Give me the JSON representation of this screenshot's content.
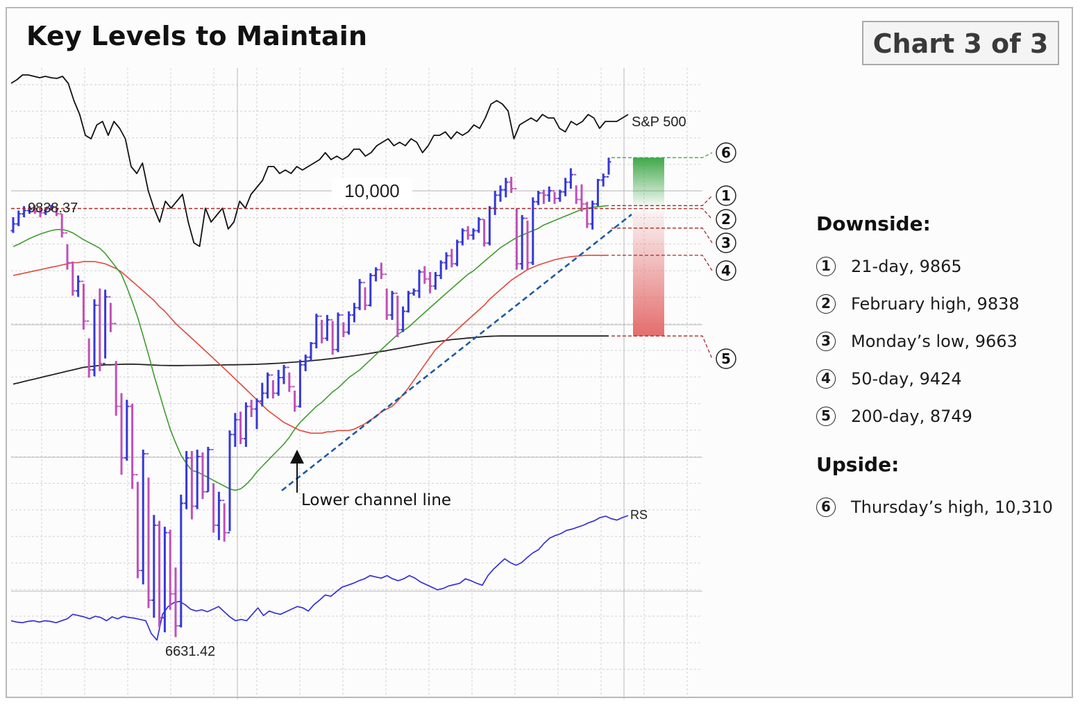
{
  "header": {
    "title": "Key Levels to Maintain",
    "badge": "Chart 3 of 3"
  },
  "legend": {
    "downside_heading": "Downside:",
    "upside_heading": "Upside:",
    "downside": [
      {
        "num": "1",
        "text": "21-day, 9865"
      },
      {
        "num": "2",
        "text": "February high, 9838"
      },
      {
        "num": "3",
        "text": "Monday’s low, 9663"
      },
      {
        "num": "4",
        "text": "50-day, 9424"
      },
      {
        "num": "5",
        "text": "200-day, 8749"
      }
    ],
    "upside": [
      {
        "num": "6",
        "text": "Thursday’s high, 10,310"
      }
    ]
  },
  "chart_data": {
    "type": "ohlc",
    "scale": "log",
    "ylim": [
      6300,
      11200
    ],
    "grid": true,
    "labels": {
      "series_sp500": "S&P 500",
      "series_rs": "RS",
      "level_10000": "10,000",
      "prior_high": "9838.37",
      "low": "6631.42",
      "annotation": "Lower channel line"
    },
    "colors": {
      "up_bar": "#3538d8",
      "down_bar": "#c24fb8",
      "ma21": "#3f9a2e",
      "ma50": "#e0473a",
      "ma200": "#222222",
      "sp500": "#111111",
      "rs": "#3330d6",
      "channel": "#1e5a9e",
      "level_line": "#a52a2a",
      "upside_zone": "#3fa84a",
      "downside_zone": "#e46d6d"
    },
    "key_levels": [
      {
        "num": "1",
        "value": 9865
      },
      {
        "num": "2",
        "value": 9838
      },
      {
        "num": "3",
        "value": 9663
      },
      {
        "num": "4",
        "value": 9424
      },
      {
        "num": "5",
        "value": 8749
      },
      {
        "num": "6",
        "value": 10310
      }
    ],
    "bars": [
      [
        9640,
        9760,
        9620,
        9700
      ],
      [
        9700,
        9820,
        9680,
        9790
      ],
      [
        9790,
        9860,
        9760,
        9820
      ],
      [
        9820,
        9860,
        9790,
        9830
      ],
      [
        9830,
        9870,
        9790,
        9810
      ],
      [
        9810,
        9840,
        9760,
        9800
      ],
      [
        9800,
        9850,
        9780,
        9835
      ],
      [
        9835,
        9870,
        9820,
        9850
      ],
      [
        9850,
        9838,
        9770,
        9790
      ],
      [
        9790,
        9790,
        9580,
        9620
      ],
      [
        9620,
        9520,
        9300,
        9360
      ],
      [
        9360,
        9370,
        9080,
        9120
      ],
      [
        9120,
        9250,
        9070,
        9200
      ],
      [
        9200,
        9180,
        8800,
        8870
      ],
      [
        8870,
        8730,
        8420,
        8480
      ],
      [
        8480,
        9050,
        8430,
        9000
      ],
      [
        9000,
        9140,
        8470,
        8530
      ],
      [
        8530,
        9130,
        8570,
        9070
      ],
      [
        9070,
        9020,
        8780,
        8850
      ],
      [
        8850,
        8550,
        8130,
        8200
      ],
      [
        8200,
        8300,
        7700,
        7820
      ],
      [
        7820,
        8250,
        7800,
        8200
      ],
      [
        8200,
        8220,
        7600,
        7700
      ],
      [
        7700,
        7650,
        7000,
        7050
      ],
      [
        7050,
        7880,
        6960,
        7850
      ],
      [
        7850,
        7680,
        6810,
        6860
      ],
      [
        6860,
        7420,
        6750,
        7350
      ],
      [
        7350,
        7380,
        6690,
        6750
      ],
      [
        6750,
        7340,
        6660,
        7300
      ],
      [
        7300,
        7320,
        6800,
        6900
      ],
      [
        6900,
        7070,
        6631,
        6700
      ],
      [
        6700,
        7560,
        6690,
        7500
      ],
      [
        7500,
        7870,
        7460,
        7820
      ],
      [
        7820,
        7870,
        7390,
        7480
      ],
      [
        7480,
        7880,
        7460,
        7830
      ],
      [
        7830,
        7860,
        7530,
        7580
      ],
      [
        7580,
        7900,
        7580,
        7880
      ],
      [
        7880,
        7640,
        7300,
        7350
      ],
      [
        7350,
        7580,
        7250,
        7520
      ],
      [
        7520,
        7500,
        7240,
        7300
      ],
      [
        7300,
        8020,
        7310,
        7990
      ],
      [
        7990,
        8150,
        7900,
        8100
      ],
      [
        8100,
        8160,
        7920,
        7960
      ],
      [
        7960,
        8230,
        7900,
        8200
      ],
      [
        8200,
        8250,
        8120,
        8180
      ],
      [
        8180,
        8260,
        8030,
        8240
      ],
      [
        8240,
        8380,
        8200,
        8300
      ],
      [
        8300,
        8460,
        8260,
        8440
      ],
      [
        8440,
        8400,
        8260,
        8300
      ],
      [
        8300,
        8480,
        8280,
        8420
      ],
      [
        8420,
        8520,
        8370,
        8500
      ],
      [
        8500,
        8460,
        8310,
        8350
      ],
      [
        8350,
        8320,
        8160,
        8200
      ],
      [
        8200,
        8560,
        8190,
        8520
      ],
      [
        8520,
        8600,
        8470,
        8580
      ],
      [
        8580,
        8700,
        8550,
        8690
      ],
      [
        8690,
        8930,
        8650,
        8910
      ],
      [
        8910,
        8880,
        8690,
        8730
      ],
      [
        8730,
        8920,
        8710,
        8880
      ],
      [
        8880,
        8870,
        8600,
        8640
      ],
      [
        8640,
        8940,
        8620,
        8920
      ],
      [
        8920,
        8860,
        8740,
        8780
      ],
      [
        8780,
        8950,
        8760,
        8920
      ],
      [
        8920,
        9020,
        8860,
        8980
      ],
      [
        8980,
        9220,
        8960,
        9190
      ],
      [
        9190,
        9150,
        8960,
        9000
      ],
      [
        9000,
        9270,
        8990,
        9250
      ],
      [
        9250,
        9320,
        9200,
        9300
      ],
      [
        9300,
        9360,
        9220,
        9260
      ],
      [
        9260,
        9140,
        8880,
        8920
      ],
      [
        8920,
        9120,
        8880,
        9100
      ],
      [
        9100,
        9080,
        8740,
        8800
      ],
      [
        8800,
        8990,
        8780,
        8950
      ],
      [
        8950,
        9120,
        8940,
        9100
      ],
      [
        9100,
        9140,
        9080,
        9120
      ],
      [
        9120,
        9300,
        9060,
        9280
      ],
      [
        9280,
        9330,
        9180,
        9220
      ],
      [
        9220,
        9280,
        9100,
        9160
      ],
      [
        9160,
        9280,
        9130,
        9250
      ],
      [
        9250,
        9380,
        9220,
        9360
      ],
      [
        9360,
        9450,
        9300,
        9420
      ],
      [
        9420,
        9480,
        9320,
        9350
      ],
      [
        9350,
        9560,
        9330,
        9540
      ],
      [
        9540,
        9660,
        9510,
        9640
      ],
      [
        9640,
        9680,
        9560,
        9600
      ],
      [
        9600,
        9660,
        9560,
        9640
      ],
      [
        9640,
        9760,
        9620,
        9740
      ],
      [
        9740,
        9740,
        9500,
        9530
      ],
      [
        9530,
        9860,
        9510,
        9840
      ],
      [
        9840,
        10000,
        9780,
        9960
      ],
      [
        9960,
        10050,
        9900,
        10010
      ],
      [
        10010,
        10120,
        9940,
        10080
      ],
      [
        10080,
        10130,
        9980,
        10020
      ],
      [
        10020,
        9840,
        9300,
        9350
      ],
      [
        9350,
        9780,
        9300,
        9750
      ],
      [
        9750,
        9730,
        9300,
        9360
      ],
      [
        9360,
        9940,
        9340,
        9900
      ],
      [
        9900,
        10000,
        9870,
        9980
      ],
      [
        9980,
        10010,
        9880,
        9960
      ],
      [
        9960,
        10040,
        9900,
        10000
      ],
      [
        10000,
        9990,
        9880,
        9930
      ],
      [
        9930,
        10010,
        9900,
        9990
      ],
      [
        9990,
        10120,
        9950,
        10080
      ],
      [
        10080,
        10210,
        10020,
        10150
      ],
      [
        10150,
        10050,
        9880,
        9920
      ],
      [
        9920,
        10060,
        9810,
        9880
      ],
      [
        9880,
        9900,
        9663,
        9700
      ],
      [
        9700,
        9910,
        9650,
        9880
      ],
      [
        9880,
        10110,
        9860,
        10100
      ],
      [
        10100,
        10160,
        10040,
        10130
      ],
      [
        10130,
        10310,
        10150,
        10270
      ]
    ],
    "ma21": [
      9500,
      9520,
      9545,
      9570,
      9590,
      9610,
      9625,
      9640,
      9650,
      9650,
      9640,
      9620,
      9590,
      9560,
      9535,
      9510,
      9485,
      9440,
      9380,
      9320,
      9260,
      9150,
      9030,
      8900,
      8750,
      8600,
      8440,
      8300,
      8160,
      8030,
      7930,
      7840,
      7780,
      7730,
      7720,
      7700,
      7680,
      7660,
      7640,
      7620,
      7600,
      7590,
      7600,
      7630,
      7670,
      7720,
      7760,
      7800,
      7840,
      7880,
      7920,
      7970,
      8030,
      8080,
      8120,
      8160,
      8200,
      8230,
      8270,
      8310,
      8340,
      8380,
      8420,
      8450,
      8480,
      8520,
      8560,
      8600,
      8640,
      8680,
      8720,
      8760,
      8790,
      8820,
      8860,
      8900,
      8940,
      8980,
      9020,
      9060,
      9100,
      9140,
      9180,
      9220,
      9260,
      9290,
      9330,
      9370,
      9410,
      9450,
      9490,
      9520,
      9550,
      9580,
      9600,
      9620,
      9640,
      9660,
      9690,
      9710,
      9730,
      9750,
      9770,
      9790,
      9810,
      9830,
      9840,
      9850,
      9855,
      9860,
      9865
    ],
    "ma50": [
      9250,
      9260,
      9270,
      9280,
      9290,
      9300,
      9310,
      9320,
      9330,
      9340,
      9350,
      9360,
      9360,
      9370,
      9370,
      9370,
      9360,
      9350,
      9330,
      9310,
      9280,
      9240,
      9200,
      9160,
      9120,
      9080,
      9040,
      8990,
      8950,
      8900,
      8850,
      8810,
      8770,
      8730,
      8690,
      8650,
      8610,
      8570,
      8530,
      8490,
      8450,
      8410,
      8370,
      8330,
      8290,
      8250,
      8210,
      8170,
      8140,
      8110,
      8080,
      8060,
      8040,
      8020,
      8010,
      8000,
      8000,
      8000,
      8010,
      8010,
      8020,
      8020,
      8020,
      8030,
      8050,
      8070,
      8100,
      8120,
      8160,
      8180,
      8200,
      8240,
      8290,
      8340,
      8400,
      8460,
      8520,
      8580,
      8640,
      8680,
      8720,
      8760,
      8800,
      8840,
      8880,
      8920,
      8960,
      9000,
      9050,
      9090,
      9130,
      9170,
      9210,
      9240,
      9270,
      9300,
      9320,
      9340,
      9355,
      9370,
      9385,
      9395,
      9405,
      9412,
      9416,
      9420,
      9424,
      9424,
      9424,
      9424,
      9424
    ],
    "ma200": [
      8370,
      8380,
      8390,
      8400,
      8410,
      8420,
      8430,
      8440,
      8450,
      8460,
      8470,
      8480,
      8490,
      8500,
      8505,
      8510,
      8515,
      8520,
      8520,
      8522,
      8524,
      8525,
      8525,
      8524,
      8522,
      8520,
      8518,
      8516,
      8515,
      8514,
      8514,
      8514,
      8515,
      8515,
      8516,
      8516,
      8517,
      8518,
      8518,
      8519,
      8520,
      8520,
      8521,
      8522,
      8523,
      8524,
      8526,
      8528,
      8530,
      8532,
      8535,
      8538,
      8541,
      8545,
      8548,
      8552,
      8556,
      8560,
      8565,
      8570,
      8575,
      8580,
      8586,
      8592,
      8598,
      8604,
      8611,
      8618,
      8625,
      8632,
      8640,
      8648,
      8656,
      8664,
      8672,
      8680,
      8688,
      8696,
      8702,
      8708,
      8714,
      8720,
      8724,
      8728,
      8732,
      8736,
      8740,
      8744,
      8746,
      8748,
      8749,
      8749,
      8749,
      8749,
      8749,
      8749,
      8749,
      8749,
      8749,
      8749,
      8749,
      8749,
      8749,
      8749,
      8749,
      8749,
      8749,
      8749,
      8749,
      8749,
      8749
    ],
    "sp500": [
      120,
      115,
      108,
      108,
      110,
      112,
      110,
      112,
      113,
      110,
      120,
      145,
      165,
      195,
      200,
      180,
      175,
      195,
      175,
      185,
      200,
      240,
      250,
      235,
      275,
      300,
      320,
      290,
      300,
      290,
      280,
      320,
      350,
      355,
      300,
      320,
      310,
      300,
      330,
      320,
      290,
      300,
      280,
      270,
      260,
      240,
      240,
      250,
      245,
      250,
      240,
      245,
      240,
      235,
      230,
      220,
      230,
      225,
      230,
      225,
      215,
      215,
      225,
      220,
      210,
      205,
      200,
      210,
      205,
      210,
      200,
      205,
      220,
      210,
      195,
      195,
      190,
      200,
      190,
      195,
      190,
      180,
      185,
      170,
      150,
      145,
      150,
      160,
      200,
      180,
      175,
      170,
      175,
      165,
      170,
      170,
      185,
      190,
      175,
      180,
      175,
      165,
      170,
      185,
      175,
      175,
      175,
      170,
      165
    ],
    "rs": [
      30,
      28,
      27,
      29,
      30,
      28,
      30,
      29,
      27,
      30,
      33,
      40,
      38,
      36,
      33,
      37,
      35,
      30,
      36,
      33,
      37,
      35,
      34,
      32,
      30,
      10,
      0,
      40,
      52,
      58,
      60,
      55,
      48,
      45,
      47,
      44,
      48,
      52,
      44,
      36,
      30,
      32,
      30,
      40,
      50,
      38,
      45,
      42,
      40,
      44,
      48,
      52,
      50,
      45,
      55,
      62,
      70,
      68,
      75,
      82,
      85,
      88,
      92,
      95,
      100,
      98,
      96,
      100,
      95,
      92,
      95,
      100,
      96,
      90,
      86,
      82,
      78,
      80,
      84,
      86,
      88,
      95,
      92,
      88,
      85,
      100,
      110,
      118,
      126,
      120,
      116,
      120,
      128,
      135,
      140,
      150,
      158,
      162,
      165,
      170,
      172,
      175,
      178,
      182,
      185,
      190,
      192,
      188,
      186,
      190,
      193
    ]
  }
}
